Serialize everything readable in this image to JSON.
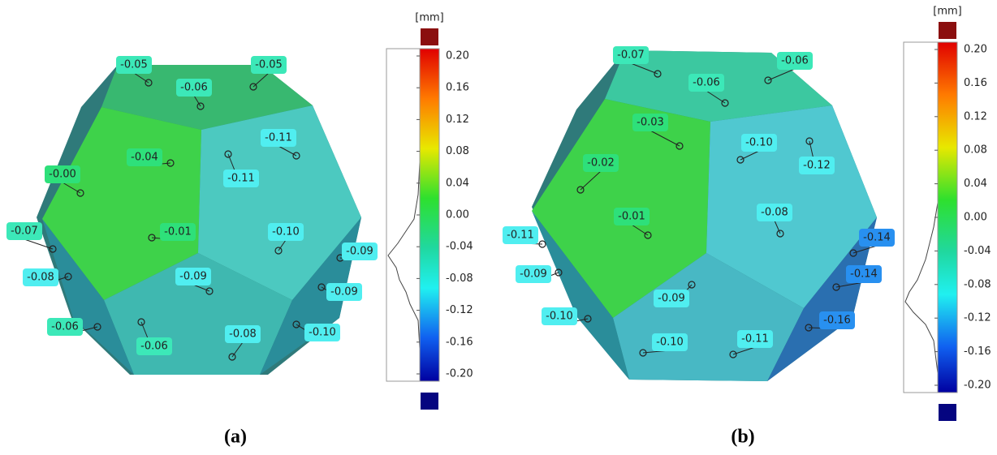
{
  "panels": [
    {
      "unit": "[mm]",
      "scale_ticks": [
        "0.20",
        "0.16",
        "0.12",
        "0.08",
        "0.04",
        "0.00",
        "-0.04",
        "-0.08",
        "-0.12",
        "-0.16",
        "-0.20"
      ],
      "labels": [
        "-0.05",
        "-0.05",
        "-0.06",
        "-0.04",
        "-0.11",
        "-0.11",
        "-0.00",
        "-0.07",
        "-0.01",
        "-0.10",
        "-0.09",
        "-0.08",
        "-0.09",
        "-0.09",
        "-0.06",
        "-0.06",
        "-0.08",
        "-0.10"
      ],
      "caption": "(a)"
    },
    {
      "unit": "[mm]",
      "scale_ticks": [
        "0.20",
        "0.16",
        "0.12",
        "0.08",
        "0.04",
        "0.00",
        "-0.04",
        "-0.08",
        "-0.12",
        "-0.16",
        "-0.20"
      ],
      "labels": [
        "-0.07",
        "-0.06",
        "-0.06",
        "-0.03",
        "-0.10",
        "-0.12",
        "-0.02",
        "-0.01",
        "-0.08",
        "-0.11",
        "-0.14",
        "-0.09",
        "-0.14",
        "-0.09",
        "-0.10",
        "-0.16",
        "-0.10",
        "-0.11"
      ],
      "caption": "(b)"
    }
  ]
}
